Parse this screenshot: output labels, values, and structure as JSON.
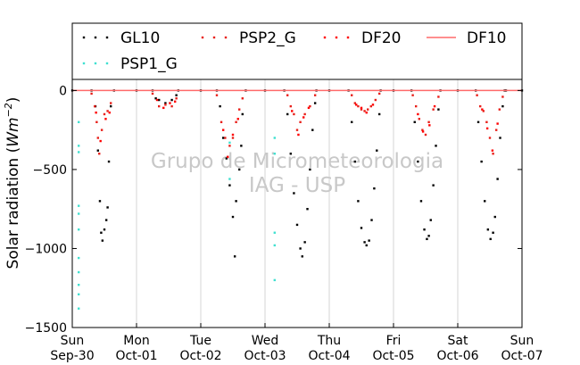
{
  "chart_data": {
    "type": "scatter",
    "title": "",
    "xlabel": "",
    "ylabel": "Solar radiation (Wm^-2)",
    "x_range": [
      0,
      7
    ],
    "ylim": [
      -1500,
      70
    ],
    "grid": {
      "x": true,
      "y": false
    },
    "legend_placement": "top",
    "x_ticks": [
      {
        "x": 0,
        "line1": "Sun",
        "line2": "Sep-30"
      },
      {
        "x": 1,
        "line1": "Mon",
        "line2": "Oct-01"
      },
      {
        "x": 2,
        "line1": "Tue",
        "line2": "Oct-02"
      },
      {
        "x": 3,
        "line1": "Wed",
        "line2": "Oct-03"
      },
      {
        "x": 4,
        "line1": "Thu",
        "line2": "Oct-04"
      },
      {
        "x": 5,
        "line1": "Fri",
        "line2": "Oct-05"
      },
      {
        "x": 6,
        "line1": "Sat",
        "line2": "Oct-06"
      },
      {
        "x": 7,
        "line1": "Sun",
        "line2": "Oct-07"
      }
    ],
    "y_ticks": [
      0,
      -500,
      -1000,
      -1500
    ],
    "watermark": [
      "Grupo de Micrometeorologia",
      "IAG - USP"
    ],
    "series": [
      {
        "name": "GL10",
        "color": "#000000",
        "style": "dots",
        "points": [
          [
            0.0,
            0
          ],
          [
            0.3,
            0
          ],
          [
            0.36,
            -100
          ],
          [
            0.4,
            -380
          ],
          [
            0.43,
            -700
          ],
          [
            0.45,
            -900
          ],
          [
            0.47,
            -950
          ],
          [
            0.5,
            -880
          ],
          [
            0.53,
            -820
          ],
          [
            0.55,
            -740
          ],
          [
            0.57,
            -450
          ],
          [
            0.6,
            -100
          ],
          [
            0.65,
            0
          ],
          [
            1.0,
            0
          ],
          [
            1.25,
            0
          ],
          [
            1.3,
            -50
          ],
          [
            1.35,
            -60
          ],
          [
            1.45,
            -80
          ],
          [
            1.55,
            -60
          ],
          [
            1.62,
            -30
          ],
          [
            1.65,
            0
          ],
          [
            2.0,
            0
          ],
          [
            2.25,
            0
          ],
          [
            2.3,
            -100
          ],
          [
            2.35,
            -300
          ],
          [
            2.4,
            -430
          ],
          [
            2.45,
            -600
          ],
          [
            2.5,
            -800
          ],
          [
            2.53,
            -1050
          ],
          [
            2.55,
            -700
          ],
          [
            2.6,
            -500
          ],
          [
            2.63,
            -350
          ],
          [
            2.65,
            -150
          ],
          [
            2.7,
            0
          ],
          [
            3.0,
            0
          ],
          [
            3.3,
            0
          ],
          [
            3.35,
            -150
          ],
          [
            3.4,
            -400
          ],
          [
            3.45,
            -650
          ],
          [
            3.5,
            -850
          ],
          [
            3.55,
            -1000
          ],
          [
            3.58,
            -1050
          ],
          [
            3.62,
            -960
          ],
          [
            3.66,
            -750
          ],
          [
            3.7,
            -500
          ],
          [
            3.74,
            -250
          ],
          [
            3.78,
            -80
          ],
          [
            3.8,
            0
          ],
          [
            4.0,
            0
          ],
          [
            4.3,
            0
          ],
          [
            4.35,
            -200
          ],
          [
            4.4,
            -450
          ],
          [
            4.45,
            -700
          ],
          [
            4.5,
            -870
          ],
          [
            4.55,
            -960
          ],
          [
            4.58,
            -980
          ],
          [
            4.62,
            -950
          ],
          [
            4.66,
            -820
          ],
          [
            4.7,
            -620
          ],
          [
            4.74,
            -380
          ],
          [
            4.78,
            -150
          ],
          [
            4.8,
            0
          ],
          [
            5.0,
            0
          ],
          [
            5.28,
            0
          ],
          [
            5.33,
            -200
          ],
          [
            5.38,
            -450
          ],
          [
            5.43,
            -700
          ],
          [
            5.48,
            -880
          ],
          [
            5.52,
            -940
          ],
          [
            5.55,
            -920
          ],
          [
            5.58,
            -820
          ],
          [
            5.62,
            -600
          ],
          [
            5.66,
            -350
          ],
          [
            5.7,
            -120
          ],
          [
            5.73,
            0
          ],
          [
            6.0,
            0
          ],
          [
            6.28,
            0
          ],
          [
            6.32,
            -200
          ],
          [
            6.37,
            -450
          ],
          [
            6.42,
            -700
          ],
          [
            6.47,
            -880
          ],
          [
            6.51,
            -940
          ],
          [
            6.55,
            -900
          ],
          [
            6.58,
            -800
          ],
          [
            6.62,
            -560
          ],
          [
            6.66,
            -300
          ],
          [
            6.7,
            -100
          ],
          [
            6.73,
            0
          ],
          [
            6.75,
            0
          ],
          [
            7.0,
            0
          ]
        ]
      },
      {
        "name": "PSP2_G",
        "color": "#e8201a",
        "style": "dots",
        "points": [
          [
            0.3,
            -20
          ],
          [
            0.35,
            -100
          ],
          [
            0.38,
            -200
          ],
          [
            0.4,
            -300
          ],
          [
            0.42,
            -400
          ],
          [
            0.46,
            -250
          ],
          [
            0.5,
            -150
          ],
          [
            0.55,
            -130
          ],
          [
            0.6,
            -80
          ],
          [
            1.25,
            -20
          ],
          [
            1.35,
            -100
          ],
          [
            1.45,
            -90
          ],
          [
            1.55,
            -100
          ],
          [
            1.62,
            -50
          ],
          [
            2.25,
            -30
          ],
          [
            2.32,
            -200
          ],
          [
            2.38,
            -300
          ],
          [
            2.45,
            -350
          ],
          [
            2.5,
            -300
          ],
          [
            2.55,
            -200
          ],
          [
            2.6,
            -120
          ],
          [
            2.65,
            -50
          ],
          [
            3.35,
            -30
          ],
          [
            3.4,
            -100
          ],
          [
            3.45,
            -150
          ],
          [
            3.5,
            -250
          ],
          [
            3.55,
            -200
          ],
          [
            3.62,
            -150
          ],
          [
            3.7,
            -100
          ],
          [
            3.78,
            -30
          ],
          [
            4.35,
            -30
          ],
          [
            4.4,
            -80
          ],
          [
            4.45,
            -100
          ],
          [
            4.5,
            -120
          ],
          [
            4.55,
            -130
          ],
          [
            4.6,
            -120
          ],
          [
            4.65,
            -100
          ],
          [
            4.72,
            -60
          ],
          [
            4.78,
            -20
          ],
          [
            5.3,
            -30
          ],
          [
            5.35,
            -100
          ],
          [
            5.4,
            -180
          ],
          [
            5.45,
            -250
          ],
          [
            5.5,
            -280
          ],
          [
            5.55,
            -200
          ],
          [
            5.62,
            -120
          ],
          [
            5.7,
            -40
          ],
          [
            6.3,
            -30
          ],
          [
            6.35,
            -100
          ],
          [
            6.4,
            -130
          ],
          [
            6.45,
            -200
          ],
          [
            6.5,
            -300
          ],
          [
            6.55,
            -400
          ],
          [
            6.6,
            -250
          ],
          [
            6.65,
            -120
          ],
          [
            6.7,
            -40
          ]
        ]
      },
      {
        "name": "DF20",
        "color": "#ff0000",
        "style": "dots",
        "points": [
          [
            0.37,
            -140
          ],
          [
            0.44,
            -320
          ],
          [
            0.52,
            -180
          ],
          [
            0.58,
            -140
          ],
          [
            1.32,
            -60
          ],
          [
            1.42,
            -110
          ],
          [
            1.52,
            -80
          ],
          [
            1.6,
            -70
          ],
          [
            2.35,
            -250
          ],
          [
            2.42,
            -420
          ],
          [
            2.5,
            -280
          ],
          [
            2.58,
            -180
          ],
          [
            3.42,
            -130
          ],
          [
            3.52,
            -280
          ],
          [
            3.6,
            -170
          ],
          [
            3.68,
            -110
          ],
          [
            4.42,
            -90
          ],
          [
            4.5,
            -110
          ],
          [
            4.58,
            -140
          ],
          [
            4.68,
            -90
          ],
          [
            5.38,
            -150
          ],
          [
            5.46,
            -260
          ],
          [
            5.56,
            -220
          ],
          [
            5.64,
            -100
          ],
          [
            6.38,
            -120
          ],
          [
            6.46,
            -240
          ],
          [
            6.54,
            -380
          ],
          [
            6.62,
            -210
          ]
        ]
      },
      {
        "name": "DF10",
        "color": "#ff6a6a",
        "style": "line",
        "points": [
          [
            0.0,
            0
          ],
          [
            7.0,
            0
          ]
        ]
      },
      {
        "name": "PSP1_G",
        "color": "#40e0d0",
        "style": "dots",
        "points": [
          [
            0.1,
            -200
          ],
          [
            0.1,
            -350
          ],
          [
            0.1,
            -390
          ],
          [
            0.1,
            -730
          ],
          [
            0.1,
            -780
          ],
          [
            0.1,
            -880
          ],
          [
            0.1,
            -1060
          ],
          [
            0.1,
            -1150
          ],
          [
            0.1,
            -1230
          ],
          [
            0.1,
            -1290
          ],
          [
            0.1,
            -1380
          ],
          [
            2.45,
            -330
          ],
          [
            2.45,
            -560
          ],
          [
            3.15,
            -300
          ],
          [
            3.15,
            -400
          ],
          [
            3.15,
            -900
          ],
          [
            3.15,
            -980
          ],
          [
            3.15,
            -1200
          ]
        ]
      }
    ]
  }
}
